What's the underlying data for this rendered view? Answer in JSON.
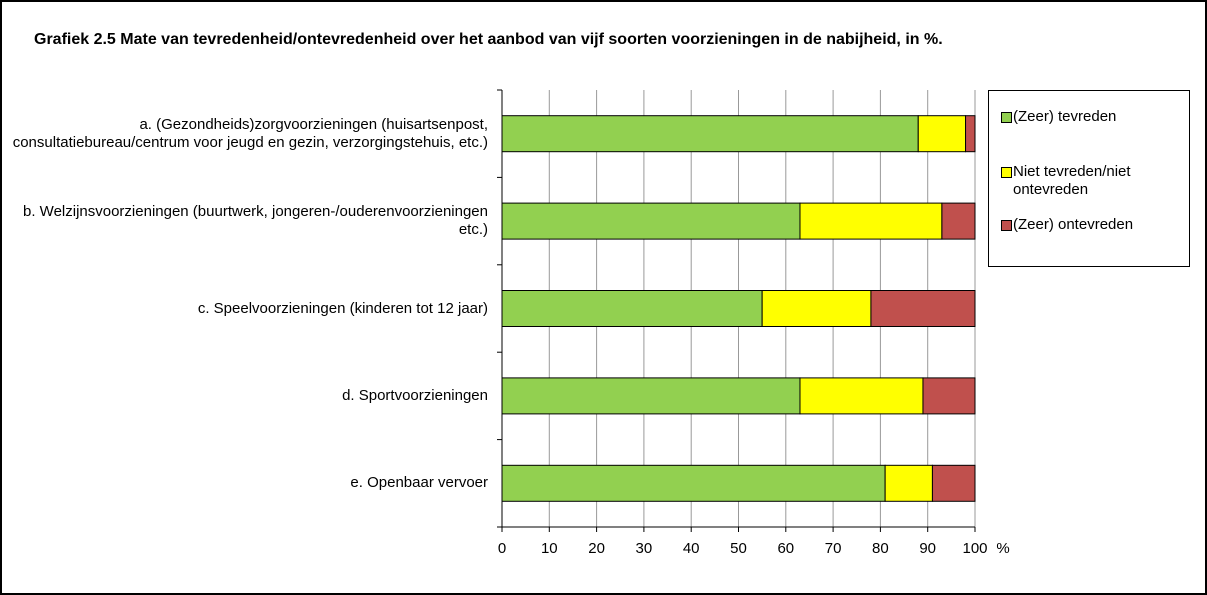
{
  "chart_data": {
    "type": "stacked_barh",
    "title": "Grafiek 2.5 Mate van tevredenheid/ontevredenheid over het aanbod van vijf soorten voorzieningen in de nabijheid, in %.",
    "categories": [
      "a. (Gezondheids)zorgvoorzieningen (huisartsenpost, consultatiebureau/centrum voor jeugd en gezin, verzorgingstehuis, etc.)",
      "b. Welzijnsvoorzieningen (buurtwerk, jongeren-/ouderenvoorzieningen etc.)",
      "c. Speelvoorzieningen (kinderen tot 12 jaar)",
      "d. Sportvoorzieningen",
      "e. Openbaar vervoer"
    ],
    "series": [
      {
        "name": "(Zeer) tevreden",
        "color": "#92d050",
        "values": [
          88,
          63,
          55,
          63,
          81
        ]
      },
      {
        "name": "Niet tevreden/niet ontevreden",
        "color": "#ffff00",
        "values": [
          10,
          30,
          23,
          26,
          10
        ]
      },
      {
        "name": "(Zeer) ontevreden",
        "color": "#c0504d",
        "values": [
          2,
          7,
          22,
          11,
          9
        ]
      }
    ],
    "x_label": "%",
    "xlim": [
      0,
      100
    ],
    "xticks": [
      0,
      10,
      20,
      30,
      40,
      50,
      60,
      70,
      80,
      90,
      100
    ],
    "grid": true,
    "legend": "right"
  }
}
